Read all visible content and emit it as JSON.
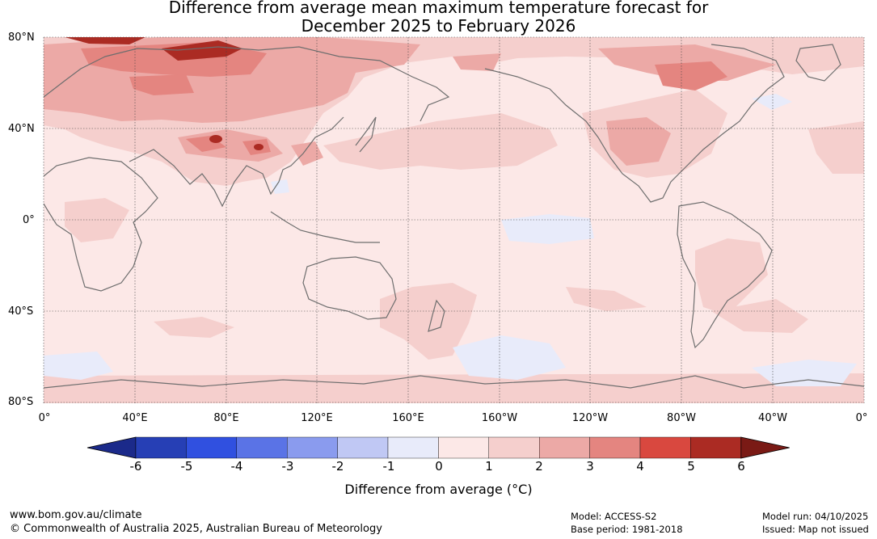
{
  "title": {
    "line1": "Difference from average mean maximum temperature forecast for",
    "line2": "December 2025 to February 2026"
  },
  "latitude_labels": [
    "80°N",
    "40°N",
    "0°",
    "40°S",
    "80°S"
  ],
  "longitude_labels": [
    "0°",
    "40°E",
    "80°E",
    "120°E",
    "160°E",
    "160°W",
    "120°W",
    "80°W",
    "40°W",
    "0°"
  ],
  "colorbar": {
    "title": "Difference from average (°C)",
    "ticks": [
      "-6",
      "-5",
      "-4",
      "-3",
      "-2",
      "-1",
      "0",
      "1",
      "2",
      "3",
      "4",
      "5",
      "6"
    ],
    "colors": [
      "#1b2a8a",
      "#263fb5",
      "#3050e0",
      "#5a73e6",
      "#8a9bee",
      "#c0c8f4",
      "#e8ebfa",
      "#fce8e7",
      "#f5cfcd",
      "#eca9a6",
      "#e48580",
      "#d9483f",
      "#ab2b23",
      "#7a1a15"
    ]
  },
  "footer": {
    "website": "www.bom.gov.au/climate",
    "copyright": "© Commonwealth of Australia 2025, Australian Bureau of Meteorology",
    "model": "Model: ACCESS-S2",
    "base_period": "Base period: 1981-2018",
    "model_run": "Model run: 04/10/2025",
    "issued": "Issued: Map not issued"
  }
}
